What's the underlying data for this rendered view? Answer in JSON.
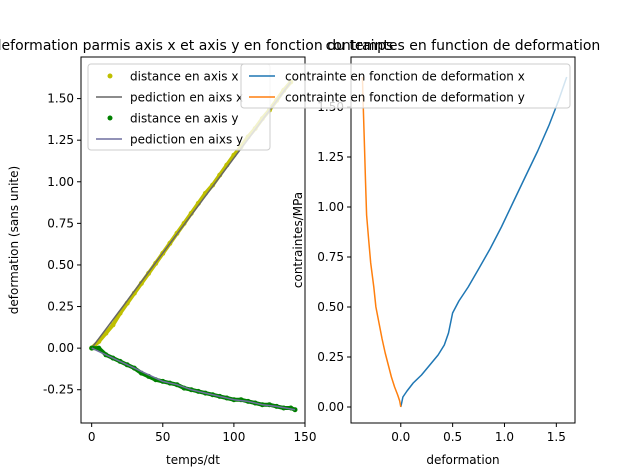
{
  "figure": {
    "background": "#ffffff"
  },
  "chart_data": [
    {
      "type": "line",
      "title": "deformation parmis axis x et axis y en fonction du temps",
      "xlabel": "temps/dt",
      "ylabel": "deformation (sans unite)",
      "xlim": [
        -7.5,
        150
      ],
      "ylim": [
        -0.45,
        1.75
      ],
      "xticks": [
        0,
        50,
        100,
        150
      ],
      "yticks": [
        -0.25,
        0.0,
        0.25,
        0.5,
        0.75,
        1.0,
        1.25,
        1.5
      ],
      "grid": false,
      "legend_position": "top-left",
      "series": [
        {
          "name": "distance en axis x",
          "kind": "points",
          "color": "#bfbf00",
          "x": [
            0,
            5,
            10,
            15,
            20,
            25,
            30,
            35,
            40,
            45,
            50,
            55,
            60,
            65,
            70,
            75,
            80,
            85,
            90,
            95,
            100,
            105,
            110,
            115,
            120,
            125,
            130,
            135,
            140
          ],
          "y": [
            0.0,
            0.04,
            0.09,
            0.14,
            0.21,
            0.27,
            0.33,
            0.39,
            0.45,
            0.51,
            0.57,
            0.63,
            0.69,
            0.75,
            0.81,
            0.87,
            0.93,
            0.98,
            1.04,
            1.1,
            1.16,
            1.21,
            1.27,
            1.32,
            1.38,
            1.43,
            1.49,
            1.55,
            1.6
          ]
        },
        {
          "name": "pediction en aixs x",
          "kind": "line",
          "color": "#666666",
          "x": [
            0,
            140
          ],
          "y": [
            0.0,
            1.6
          ]
        },
        {
          "name": "distance en axis y",
          "kind": "points",
          "color": "#008000",
          "x": [
            0,
            5,
            10,
            15,
            20,
            25,
            30,
            35,
            40,
            45,
            50,
            55,
            60,
            65,
            70,
            75,
            80,
            85,
            90,
            95,
            100,
            105,
            110,
            115,
            120,
            125,
            130,
            135,
            140,
            143
          ],
          "y": [
            0.0,
            0.0,
            -0.04,
            -0.06,
            -0.08,
            -0.1,
            -0.12,
            -0.15,
            -0.17,
            -0.19,
            -0.2,
            -0.21,
            -0.22,
            -0.24,
            -0.25,
            -0.26,
            -0.27,
            -0.28,
            -0.29,
            -0.3,
            -0.31,
            -0.31,
            -0.32,
            -0.33,
            -0.34,
            -0.34,
            -0.35,
            -0.36,
            -0.36,
            -0.37
          ]
        },
        {
          "name": "pediction en aixs y",
          "kind": "line",
          "color": "#6f6f9f",
          "x": [
            0,
            10,
            20,
            30,
            40,
            50,
            60,
            70,
            80,
            90,
            100,
            110,
            120,
            130,
            143
          ],
          "y": [
            0.0,
            -0.04,
            -0.08,
            -0.12,
            -0.16,
            -0.2,
            -0.22,
            -0.25,
            -0.27,
            -0.29,
            -0.31,
            -0.32,
            -0.34,
            -0.35,
            -0.37
          ]
        }
      ]
    },
    {
      "type": "line",
      "title": "contraintes en function de deformation",
      "xlabel": "deformation",
      "ylabel": "contraintes/MPa",
      "xlim": [
        -0.48,
        1.68
      ],
      "ylim": [
        -0.08,
        1.75
      ],
      "xticks": [
        0.0,
        0.5,
        1.0,
        1.5
      ],
      "yticks": [
        0.0,
        0.25,
        0.5,
        0.75,
        1.0,
        1.25,
        1.5
      ],
      "grid": false,
      "legend_position": "top-right",
      "series": [
        {
          "name": "contrainte en fonction de deformation x",
          "color": "#1f77b4",
          "x": [
            0.0,
            0.02,
            0.06,
            0.12,
            0.2,
            0.28,
            0.36,
            0.42,
            0.46,
            0.5,
            0.56,
            0.65,
            0.75,
            0.86,
            0.97,
            1.08,
            1.2,
            1.32,
            1.43,
            1.52,
            1.58,
            1.6
          ],
          "y": [
            0.0,
            0.05,
            0.08,
            0.12,
            0.16,
            0.21,
            0.26,
            0.31,
            0.37,
            0.47,
            0.53,
            0.6,
            0.69,
            0.79,
            0.9,
            1.02,
            1.15,
            1.28,
            1.41,
            1.53,
            1.62,
            1.65
          ]
        },
        {
          "name": "contrainte en fonction de deformation y",
          "color": "#ff7f0e",
          "x": [
            -0.37,
            -0.36,
            -0.35,
            -0.34,
            -0.33,
            -0.31,
            -0.29,
            -0.26,
            -0.24,
            -0.21,
            -0.18,
            -0.15,
            -0.12,
            -0.09,
            -0.06,
            -0.03,
            -0.01,
            0.0
          ],
          "y": [
            1.65,
            1.48,
            1.3,
            1.13,
            0.96,
            0.84,
            0.72,
            0.6,
            0.5,
            0.42,
            0.34,
            0.27,
            0.21,
            0.15,
            0.1,
            0.06,
            0.03,
            0.0
          ]
        }
      ]
    }
  ]
}
